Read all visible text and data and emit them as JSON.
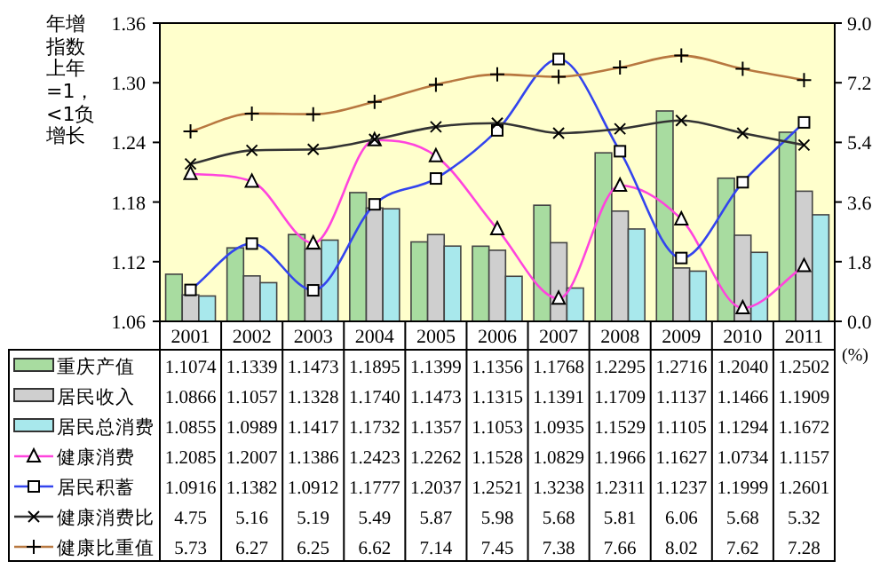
{
  "chart_data": {
    "type": "bar",
    "ylabel": "年增指数上年=1，<1负增长",
    "y2label": "(%)",
    "categories": [
      "2001",
      "2002",
      "2003",
      "2004",
      "2005",
      "2006",
      "2007",
      "2008",
      "2009",
      "2010",
      "2011"
    ],
    "ylim": [
      1.06,
      1.36
    ],
    "yticks": [
      1.06,
      1.12,
      1.18,
      1.24,
      {
        "value": 1.3,
        "label": "1.30"
      },
      1.36
    ],
    "y2lim": [
      0,
      9
    ],
    "y2ticks": [
      {
        "value": 0,
        "label": "0.0"
      },
      1.8,
      3.6,
      5.4,
      7.2,
      {
        "value": 9,
        "label": "9.0"
      }
    ],
    "legend": "bottom",
    "series": [
      {
        "name": "重庆产值",
        "color": "#a8dca0",
        "values": [
          1.1074,
          1.1339,
          1.1473,
          1.1895,
          1.1399,
          1.1356,
          1.1768,
          1.2295,
          1.2716,
          1.204,
          1.2502
        ],
        "value_labels": [
          "1.1074",
          "1.1339",
          "1.1473",
          "1.1895",
          "1.1399",
          "1.1356",
          "1.1768",
          "1.2295",
          "1.2716",
          "1.2040",
          "1.2502"
        ]
      },
      {
        "name": "居民收入",
        "color": "#cfcfcf",
        "values": [
          1.0866,
          1.1057,
          1.1328,
          1.174,
          1.1473,
          1.1315,
          1.1391,
          1.1709,
          1.1137,
          1.1466,
          1.1909
        ],
        "value_labels": [
          "1.0866",
          "1.1057",
          "1.1328",
          "1.1740",
          "1.1473",
          "1.1315",
          "1.1391",
          "1.1709",
          "1.1137",
          "1.1466",
          "1.1909"
        ]
      },
      {
        "name": "居民总消费",
        "color": "#a8e8ec",
        "values": [
          1.0855,
          1.0989,
          1.1417,
          1.1732,
          1.1357,
          1.1053,
          1.0935,
          1.1529,
          1.1105,
          1.1294,
          1.1672
        ],
        "value_labels": [
          "1.0855",
          "1.0989",
          "1.1417",
          "1.1732",
          "1.1357",
          "1.1053",
          "1.0935",
          "1.1529",
          "1.1105",
          "1.1294",
          "1.1672"
        ]
      },
      {
        "name": "健康消费",
        "type": "line",
        "marker": "triangle",
        "color": "#ff44dd",
        "values": [
          1.2085,
          1.2007,
          1.1386,
          1.2423,
          1.2262,
          1.1528,
          1.0829,
          1.1966,
          1.1627,
          1.0734,
          1.1157
        ],
        "value_labels": [
          "1.2085",
          "1.2007",
          "1.1386",
          "1.2423",
          "1.2262",
          "1.1528",
          "1.0829",
          "1.1966",
          "1.1627",
          "1.0734",
          "1.1157"
        ]
      },
      {
        "name": "居民积蓄",
        "type": "line",
        "marker": "square",
        "color": "#3344ee",
        "values": [
          1.0916,
          1.1382,
          1.0912,
          1.1777,
          1.2037,
          1.2521,
          1.3238,
          1.2311,
          1.1237,
          1.1999,
          1.2601
        ],
        "value_labels": [
          "1.0916",
          "1.1382",
          "1.0912",
          "1.1777",
          "1.2037",
          "1.2521",
          "1.3238",
          "1.2311",
          "1.1237",
          "1.1999",
          "1.2601"
        ]
      },
      {
        "name": "健康消费比",
        "type": "line",
        "marker": "x",
        "axis": "y2",
        "color": "#333333",
        "values": [
          4.75,
          5.16,
          5.19,
          5.49,
          5.87,
          5.98,
          5.68,
          5.81,
          6.06,
          5.68,
          5.32
        ],
        "value_labels": [
          "4.75",
          "5.16",
          "5.19",
          "5.49",
          "5.87",
          "5.98",
          "5.68",
          "5.81",
          "6.06",
          "5.68",
          "5.32"
        ]
      },
      {
        "name": "健康比重值",
        "type": "line",
        "marker": "cross",
        "axis": "y2",
        "color": "#b87840",
        "values": [
          5.73,
          6.27,
          6.25,
          6.62,
          7.14,
          7.45,
          7.38,
          7.66,
          8.02,
          7.62,
          7.28
        ],
        "value_labels": [
          "5.73",
          "6.27",
          "6.25",
          "6.62",
          "7.14",
          "7.45",
          "7.38",
          "7.66",
          "8.02",
          "7.62",
          "7.28"
        ]
      }
    ]
  }
}
